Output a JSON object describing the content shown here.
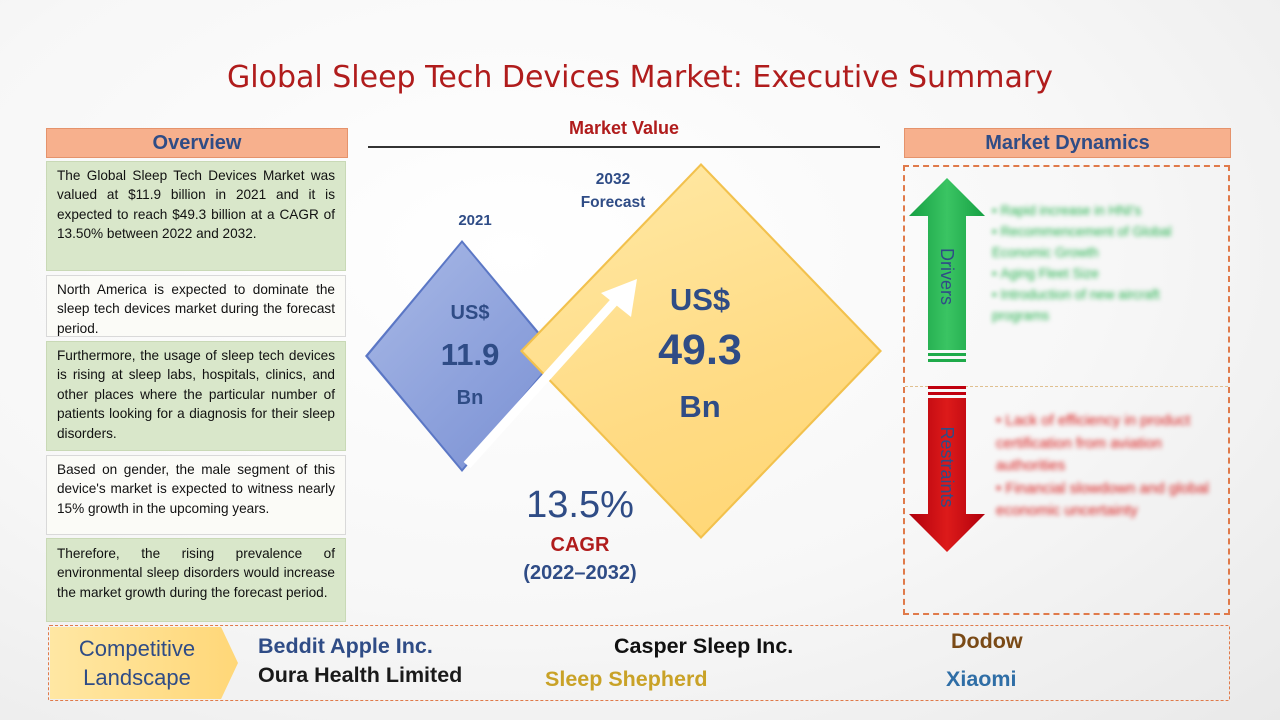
{
  "title": "Global Sleep Tech Devices Market: Executive Summary",
  "overview": {
    "header": "Overview",
    "paragraphs": [
      "The Global Sleep Tech Devices Market was valued at $11.9 billion in 2021 and it is expected to reach $49.3 billion at a CAGR of 13.50% between 2022 and 2032.",
      "North America is expected to dominate the sleep tech devices market during the forecast period.",
      "Furthermore, the usage of sleep tech devices is rising at sleep labs, hospitals, clinics, and other places where the particular number of patients looking for a diagnosis for their sleep disorders.",
      "Based on gender, the male segment of this device's market is expected to witness nearly 15% growth in the upcoming years.",
      "Therefore, the rising prevalence of environmental sleep disorders would increase the market growth during the forecast period."
    ]
  },
  "market_value": {
    "header": "Market Value",
    "year_2021": "2021",
    "forecast_year": "2032",
    "forecast_label": "Forecast",
    "small": {
      "currency": "US$",
      "value": "11.9",
      "unit": "Bn"
    },
    "big": {
      "currency": "US$",
      "value": "49.3",
      "unit": "Bn"
    },
    "cagr_value": "13.5%",
    "cagr_label": "CAGR",
    "cagr_period": "(2022–2032)"
  },
  "market_dynamics": {
    "header": "Market Dynamics",
    "drivers_label": "Drivers",
    "restraints_label": "Restraints",
    "drivers": [
      "Rapid increase in HNI's",
      "Recommencement of Global Economic Growth",
      "Aging Fleet Size",
      "Introduction of new aircraft programs"
    ],
    "restraints": [
      "Lack of efficiency in product certification from aviation authorities",
      "Financial slowdown and global economic uncertainty"
    ]
  },
  "competitive": {
    "label_line1": "Competitive",
    "label_line2": "Landscape",
    "companies": {
      "beddit": "Beddit Apple Inc.",
      "oura": "Oura Health Limited",
      "casper": "Casper Sleep Inc.",
      "shepherd": "Sleep Shepherd",
      "dodow": "Dodow",
      "xiaomi": "Xiaomi"
    }
  },
  "colors": {
    "title_red": "#b01c1c",
    "navy": "#2f4c86",
    "header_orange": "#f7b08d",
    "overview_green": "#d9e7ca",
    "diamond_blue": "#8ea2dc",
    "diamond_yellow": "#ffdb84",
    "drivers_green": "#1faa4a",
    "restraints_red": "#c0000e"
  }
}
